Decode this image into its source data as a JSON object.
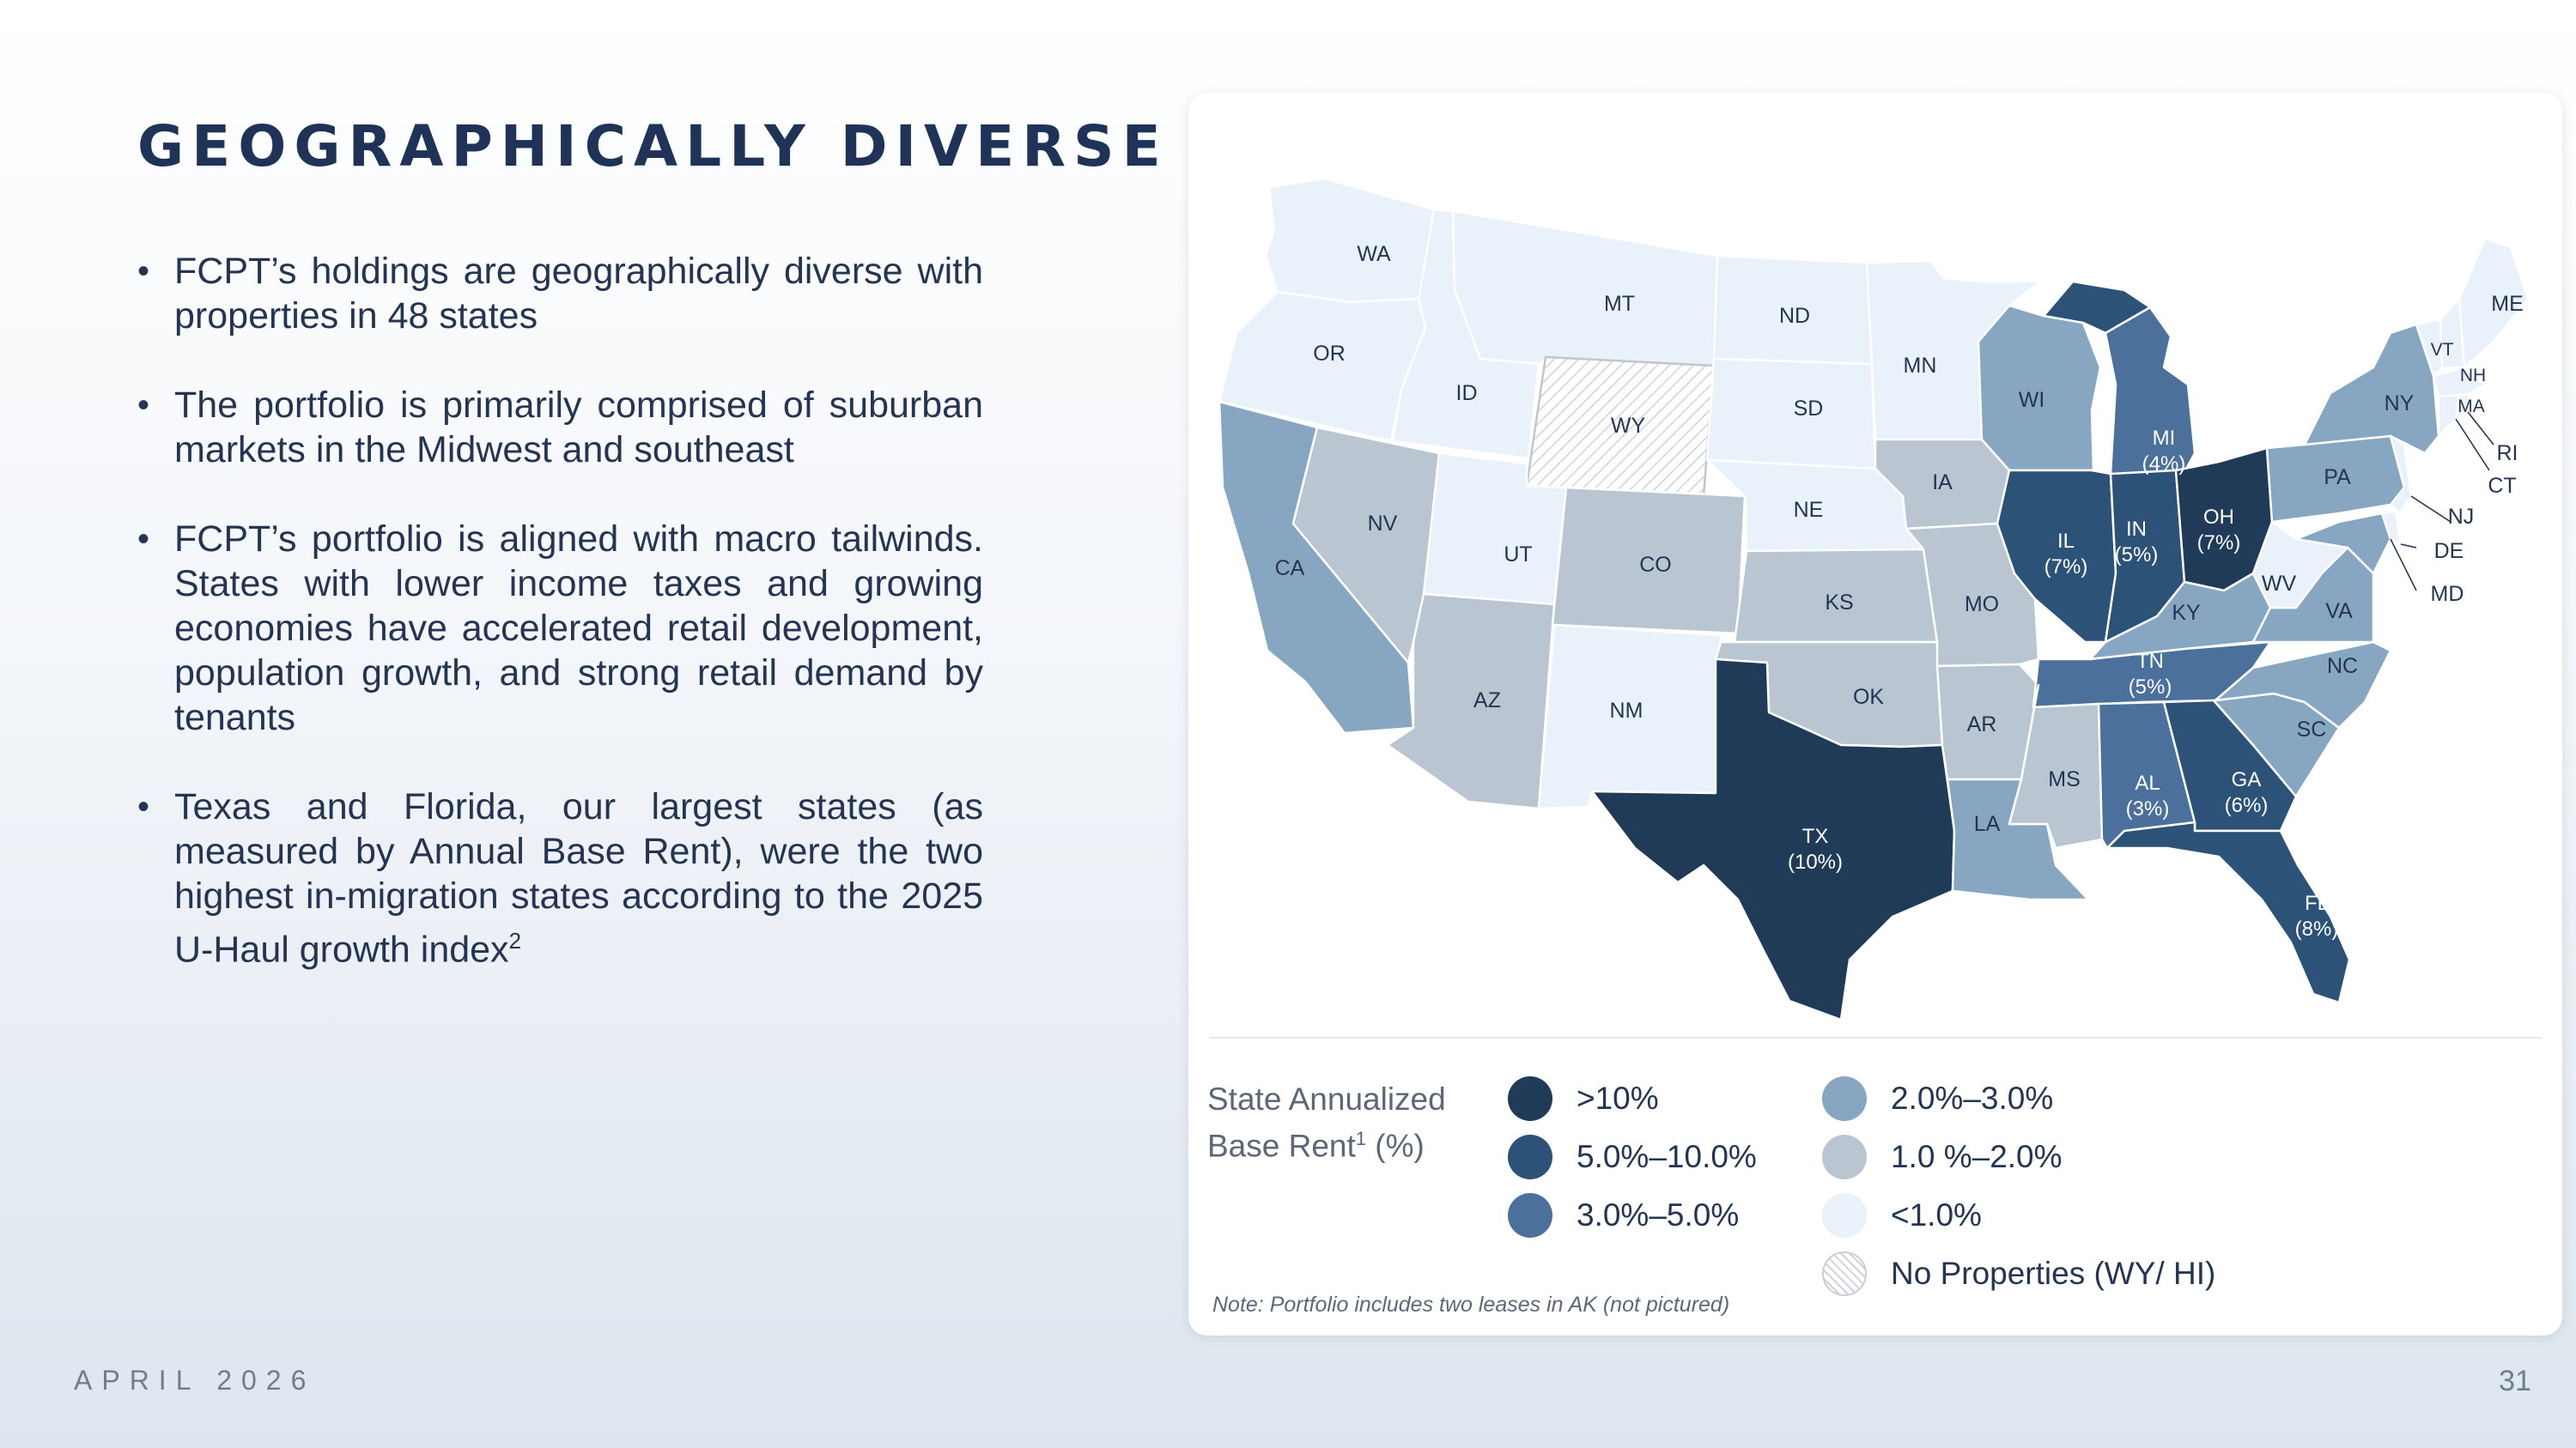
{
  "title": "GEOGRAPHICALLY DIVERSE",
  "bullets": [
    "FCPT’s holdings are geographically diverse with properties in 48 states",
    "The portfolio is primarily comprised of suburban markets in the Midwest and southeast",
    "FCPT’s portfolio is aligned with macro tailwinds. States with lower income taxes and growing economies have accelerated retail development, population growth, and strong retail demand by tenants",
    "Texas and Florida, our largest states (as measured by Annual Base Rent), were the two highest in-migration states according to the 2025 U-Haul growth index"
  ],
  "bullet4_footnote": "2",
  "footer": {
    "date": "APRIL 2026",
    "page_number": "31"
  },
  "legend": {
    "title": "State Annualized Base Rent",
    "title_footnote": "1",
    "title_suffix": " (%)",
    "items": [
      {
        "label": ">10%",
        "color": "#1f3b57"
      },
      {
        "label": "5.0%–10.0%",
        "color": "#2c5277"
      },
      {
        "label": "3.0%–5.0%",
        "color": "#4a709b"
      },
      {
        "label": "2.0%–3.0%",
        "color": "#87a6c1"
      },
      {
        "label": "1.0 %–2.0%",
        "color": "#b9c5d1"
      },
      {
        "label": "<1.0%",
        "color": "#e9f1fa"
      },
      {
        "label": "No Properties (WY/ HI)",
        "color": "hatched"
      }
    ]
  },
  "note": "Note: Portfolio includes two leases in AK (not pictured)",
  "map_labels": {
    "WA": "WA",
    "OR": "OR",
    "CA": "CA",
    "ID": "ID",
    "NV": "NV",
    "MT": "MT",
    "WY": "WY",
    "UT": "UT",
    "AZ": "AZ",
    "CO": "CO",
    "NM": "NM",
    "ND": "ND",
    "SD": "SD",
    "NE": "NE",
    "KS": "KS",
    "OK": "OK",
    "TX": "TX",
    "TX_pct": "(10%)",
    "MN": "MN",
    "IA": "IA",
    "MO": "MO",
    "AR": "AR",
    "LA": "LA",
    "WI": "WI",
    "IL": "IL",
    "IL_pct": "(7%)",
    "MI": "MI",
    "MI_pct": "(4%)",
    "IN": "IN",
    "IN_pct": "(5%)",
    "OH": "OH",
    "OH_pct": "(7%)",
    "KY": "KY",
    "TN": "TN",
    "TN_pct": "(5%)",
    "MS": "MS",
    "AL": "AL",
    "AL_pct": "(3%)",
    "GA": "GA",
    "GA_pct": "(6%)",
    "FL": "FL",
    "FL_pct": "(8%)",
    "SC": "SC",
    "NC": "NC",
    "VA": "VA",
    "WV": "WV",
    "PA": "PA",
    "NY": "NY",
    "ME": "ME",
    "VT": "VT",
    "NH": "NH",
    "MA": "MA",
    "RI": "RI",
    "CT": "CT",
    "NJ": "NJ",
    "DE": "DE",
    "MD": "MD"
  }
}
